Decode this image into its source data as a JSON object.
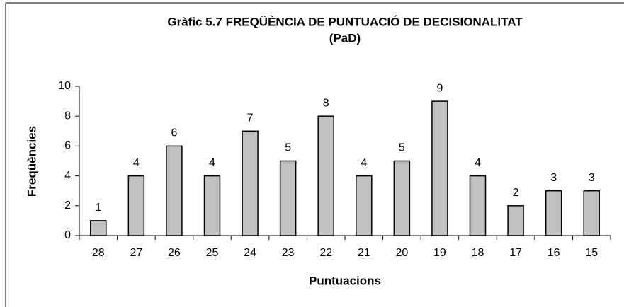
{
  "chart_data": {
    "type": "bar",
    "title": [
      "Gràfic 5.7 FREQÜÈNCIA DE PUNTUACIÓ DE DECISIONALITAT",
      "(PaD)"
    ],
    "x_label": "Puntuacions",
    "y_label": "Freqüències",
    "categories": [
      "28",
      "27",
      "26",
      "25",
      "24",
      "23",
      "22",
      "21",
      "20",
      "19",
      "18",
      "17",
      "16",
      "15"
    ],
    "values": [
      1,
      4,
      6,
      4,
      7,
      5,
      8,
      4,
      5,
      9,
      4,
      2,
      3,
      3
    ],
    "color": "#c0c0c0",
    "ylim": [
      0,
      10
    ],
    "yticks": [
      0,
      2,
      4,
      6,
      8,
      10
    ],
    "grid": false
  }
}
